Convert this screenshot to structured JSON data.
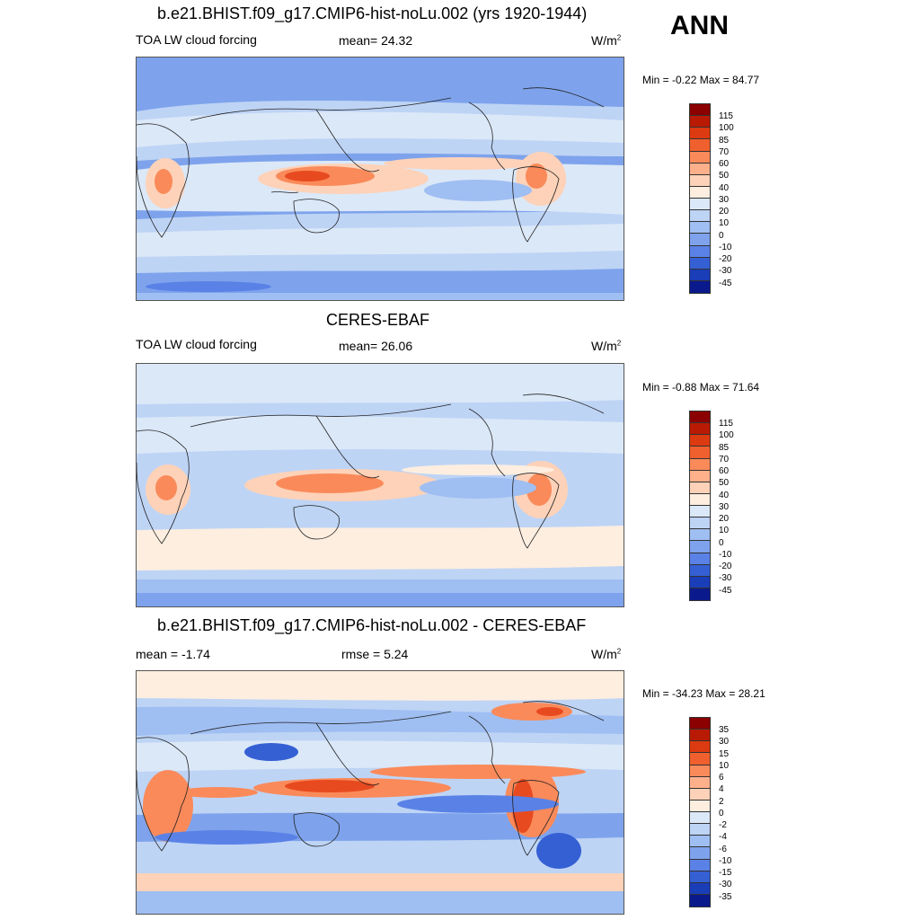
{
  "season": "ANN",
  "panels": [
    {
      "title": "b.e21.BHIST.f09_g17.CMIP6-hist-noLu.002 (yrs 1920-1944)",
      "left_label": "TOA LW cloud forcing",
      "center_label": "mean=  24.32",
      "units": "W/m",
      "units_sup": "2",
      "minmax": "Min =  -0.22 Max =  84.77",
      "colorbar_labels": [
        "115",
        "100",
        "85",
        "70",
        "60",
        "50",
        "40",
        "30",
        "20",
        "10",
        "0",
        "-10",
        "-20",
        "-30",
        "-45"
      ]
    },
    {
      "title": "CERES-EBAF",
      "left_label": "TOA LW cloud forcing",
      "center_label": "mean=  26.06",
      "units": "W/m",
      "units_sup": "2",
      "minmax": "Min =  -0.88 Max =  71.64",
      "colorbar_labels": [
        "115",
        "100",
        "85",
        "70",
        "60",
        "50",
        "40",
        "30",
        "20",
        "10",
        "0",
        "-10",
        "-20",
        "-30",
        "-45"
      ]
    },
    {
      "title": "b.e21.BHIST.f09_g17.CMIP6-hist-noLu.002 - CERES-EBAF",
      "left_label": "mean =  -1.74",
      "center_label": "rmse =   5.24",
      "units": "W/m",
      "units_sup": "2",
      "minmax": "Min = -34.23 Max =  28.21",
      "colorbar_labels": [
        "35",
        "30",
        "15",
        "10",
        "6",
        "4",
        "2",
        "0",
        "-2",
        "-4",
        "-6",
        "-10",
        "-15",
        "-30",
        "-35"
      ]
    }
  ],
  "colors": {
    "colorbar": [
      "#8b0000",
      "#b81a04",
      "#dc3a10",
      "#f0602e",
      "#fa8a5a",
      "#fdb08a",
      "#fdd2b8",
      "#fdeee0",
      "#dbe8f8",
      "#bed4f5",
      "#9fbef2",
      "#7ea3ec",
      "#5a82e6",
      "#3560d4",
      "#1a3db8",
      "#0a1a8c"
    ],
    "warm": "#fa8a5a",
    "hot": "#e84a20",
    "cool": "#9fbef2",
    "pale": "#dbe8f8",
    "peach": "#fdd2b8",
    "deep": "#5a82e6"
  }
}
